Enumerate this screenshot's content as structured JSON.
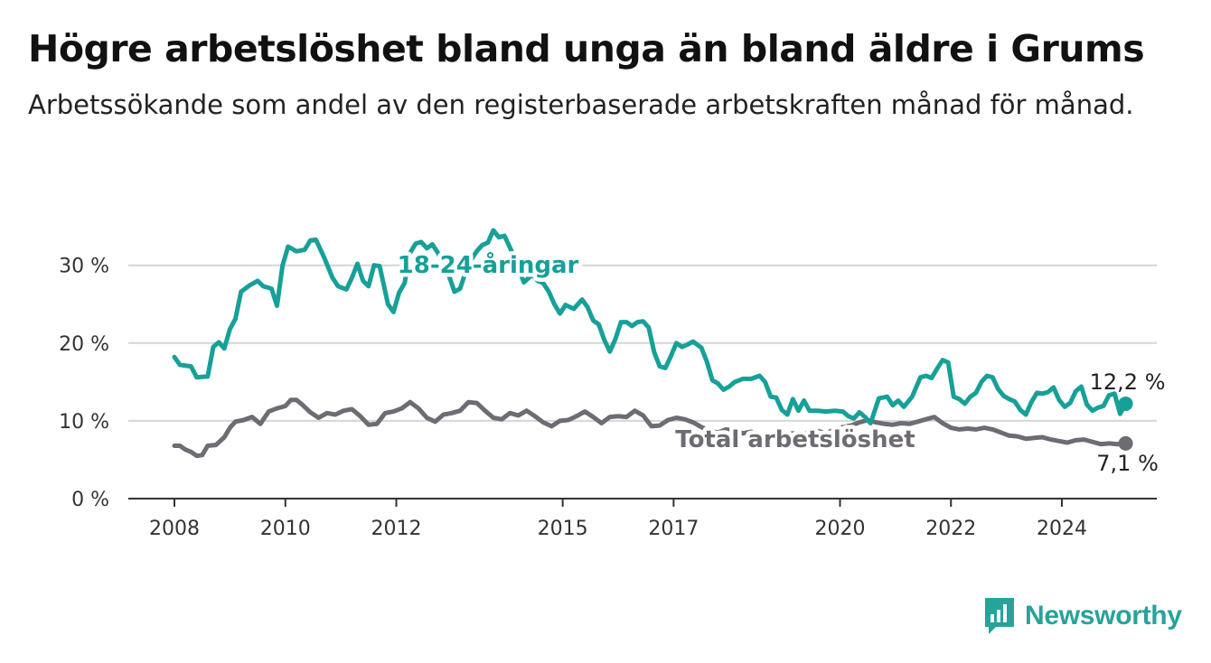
{
  "title": "Högre arbetslöshet bland unga än bland äldre i Grums",
  "subtitle": "Arbetssökande som andel av den registerbaserade arbetskraften månad för månad.",
  "brand": "Newsworthy",
  "colors": {
    "youth": "#17a098",
    "total": "#6e6b73",
    "grid": "#d6d6d6",
    "axis": "#333333"
  },
  "chart_data": {
    "type": "line",
    "x_ticks": [
      2008,
      2010,
      2012,
      2015,
      2017,
      2020,
      2022,
      2024
    ],
    "x_tick_labels": [
      "2008",
      "2010",
      "2012",
      "2015",
      "2017",
      "2020",
      "2022",
      "2024"
    ],
    "y_ticks": [
      0,
      10,
      20,
      30
    ],
    "y_tick_labels": [
      "0 %",
      "10 %",
      "20 %",
      "30 %"
    ],
    "ylim": [
      0,
      30
    ],
    "xlim": [
      2007.2,
      2025.4
    ],
    "grid": true,
    "series": [
      {
        "name": "18-24-åringar",
        "color": "#17a098",
        "end_label": "12,2 %",
        "points": [
          [
            2008.0,
            18.2
          ],
          [
            2008.1,
            17.2
          ],
          [
            2008.3,
            17.0
          ],
          [
            2008.4,
            15.6
          ],
          [
            2008.6,
            15.7
          ],
          [
            2008.7,
            19.5
          ],
          [
            2008.8,
            20.1
          ],
          [
            2008.9,
            19.3
          ],
          [
            2009.0,
            21.8
          ],
          [
            2009.1,
            23.1
          ],
          [
            2009.2,
            26.6
          ],
          [
            2009.35,
            27.4
          ],
          [
            2009.5,
            28.0
          ],
          [
            2009.6,
            27.3
          ],
          [
            2009.75,
            27.0
          ],
          [
            2009.85,
            24.8
          ],
          [
            2009.95,
            30.0
          ],
          [
            2010.05,
            32.4
          ],
          [
            2010.2,
            31.8
          ],
          [
            2010.35,
            32.0
          ],
          [
            2010.45,
            33.2
          ],
          [
            2010.55,
            33.3
          ],
          [
            2010.7,
            31.0
          ],
          [
            2010.85,
            28.4
          ],
          [
            2010.95,
            27.3
          ],
          [
            2011.1,
            26.9
          ],
          [
            2011.2,
            28.4
          ],
          [
            2011.3,
            30.2
          ],
          [
            2011.4,
            28.0
          ],
          [
            2011.5,
            27.3
          ],
          [
            2011.6,
            30.0
          ],
          [
            2011.7,
            29.9
          ],
          [
            2011.85,
            25.0
          ],
          [
            2011.95,
            24.0
          ],
          [
            2012.05,
            26.5
          ],
          [
            2012.15,
            27.7
          ],
          [
            2012.25,
            31.6
          ],
          [
            2012.35,
            32.8
          ],
          [
            2012.45,
            33.0
          ],
          [
            2012.55,
            32.2
          ],
          [
            2012.65,
            32.7
          ],
          [
            2012.75,
            31.6
          ],
          [
            2012.9,
            29.7
          ],
          [
            2013.05,
            26.6
          ],
          [
            2013.15,
            27.0
          ],
          [
            2013.3,
            30.2
          ],
          [
            2013.45,
            31.8
          ],
          [
            2013.55,
            32.6
          ],
          [
            2013.65,
            32.9
          ],
          [
            2013.75,
            34.5
          ],
          [
            2013.85,
            33.6
          ],
          [
            2013.95,
            33.8
          ],
          [
            2014.1,
            31.5
          ],
          [
            2014.2,
            29.7
          ],
          [
            2014.3,
            27.8
          ],
          [
            2014.45,
            28.8
          ],
          [
            2014.55,
            28.0
          ],
          [
            2014.65,
            27.7
          ],
          [
            2014.75,
            26.6
          ],
          [
            2014.85,
            25.0
          ],
          [
            2014.95,
            23.8
          ],
          [
            2015.05,
            24.9
          ],
          [
            2015.2,
            24.4
          ],
          [
            2015.35,
            25.6
          ],
          [
            2015.45,
            24.6
          ],
          [
            2015.55,
            22.9
          ],
          [
            2015.65,
            22.4
          ],
          [
            2015.75,
            20.4
          ],
          [
            2015.85,
            18.9
          ],
          [
            2015.95,
            20.5
          ],
          [
            2016.05,
            22.7
          ],
          [
            2016.15,
            22.7
          ],
          [
            2016.25,
            22.2
          ],
          [
            2016.35,
            22.7
          ],
          [
            2016.45,
            22.8
          ],
          [
            2016.55,
            22.0
          ],
          [
            2016.65,
            18.8
          ],
          [
            2016.75,
            17.0
          ],
          [
            2016.85,
            16.8
          ],
          [
            2016.95,
            18.3
          ],
          [
            2017.05,
            20.0
          ],
          [
            2017.15,
            19.5
          ],
          [
            2017.25,
            19.8
          ],
          [
            2017.35,
            20.2
          ],
          [
            2017.5,
            19.4
          ],
          [
            2017.6,
            17.6
          ],
          [
            2017.7,
            15.2
          ],
          [
            2017.8,
            14.8
          ],
          [
            2017.9,
            14.0
          ],
          [
            2018.0,
            14.4
          ],
          [
            2018.1,
            15.0
          ],
          [
            2018.25,
            15.4
          ],
          [
            2018.4,
            15.4
          ],
          [
            2018.55,
            15.8
          ],
          [
            2018.65,
            15.0
          ],
          [
            2018.75,
            13.1
          ],
          [
            2018.85,
            13.0
          ],
          [
            2018.95,
            11.4
          ],
          [
            2019.05,
            10.8
          ],
          [
            2019.15,
            12.8
          ],
          [
            2019.25,
            11.3
          ],
          [
            2019.35,
            12.6
          ],
          [
            2019.45,
            11.3
          ],
          [
            2019.6,
            11.3
          ],
          [
            2019.75,
            11.2
          ],
          [
            2019.9,
            11.3
          ],
          [
            2020.05,
            11.2
          ],
          [
            2020.15,
            10.6
          ],
          [
            2020.25,
            10.3
          ],
          [
            2020.35,
            11.1
          ],
          [
            2020.45,
            10.5
          ],
          [
            2020.55,
            9.7
          ],
          [
            2020.7,
            12.9
          ],
          [
            2020.85,
            13.1
          ],
          [
            2020.95,
            12.0
          ],
          [
            2021.05,
            12.6
          ],
          [
            2021.15,
            11.8
          ],
          [
            2021.3,
            13.1
          ],
          [
            2021.45,
            15.6
          ],
          [
            2021.55,
            15.8
          ],
          [
            2021.65,
            15.5
          ],
          [
            2021.75,
            16.7
          ],
          [
            2021.85,
            17.8
          ],
          [
            2021.95,
            17.5
          ],
          [
            2022.05,
            13.1
          ],
          [
            2022.15,
            12.8
          ],
          [
            2022.25,
            12.2
          ],
          [
            2022.35,
            13.1
          ],
          [
            2022.45,
            13.6
          ],
          [
            2022.55,
            15.0
          ],
          [
            2022.65,
            15.8
          ],
          [
            2022.75,
            15.6
          ],
          [
            2022.85,
            14.1
          ],
          [
            2022.95,
            13.2
          ],
          [
            2023.05,
            12.8
          ],
          [
            2023.15,
            12.5
          ],
          [
            2023.25,
            11.4
          ],
          [
            2023.35,
            10.8
          ],
          [
            2023.45,
            12.4
          ],
          [
            2023.55,
            13.6
          ],
          [
            2023.65,
            13.5
          ],
          [
            2023.75,
            13.7
          ],
          [
            2023.85,
            14.3
          ],
          [
            2023.95,
            12.7
          ],
          [
            2024.05,
            11.8
          ],
          [
            2024.15,
            12.3
          ],
          [
            2024.25,
            13.8
          ],
          [
            2024.35,
            14.4
          ],
          [
            2024.45,
            12.1
          ],
          [
            2024.55,
            11.3
          ],
          [
            2024.65,
            11.7
          ],
          [
            2024.75,
            11.9
          ],
          [
            2024.85,
            13.3
          ],
          [
            2024.95,
            13.5
          ],
          [
            2025.05,
            10.9
          ],
          [
            2025.15,
            12.2
          ]
        ]
      },
      {
        "name": "Total arbetslöshet",
        "color": "#6e6b73",
        "end_label": "7,1 %",
        "points": [
          [
            2008.0,
            6.8
          ],
          [
            2008.1,
            6.8
          ],
          [
            2008.2,
            6.3
          ],
          [
            2008.3,
            6.0
          ],
          [
            2008.4,
            5.5
          ],
          [
            2008.5,
            5.6
          ],
          [
            2008.6,
            6.8
          ],
          [
            2008.75,
            6.9
          ],
          [
            2008.9,
            7.9
          ],
          [
            2009.0,
            9.1
          ],
          [
            2009.1,
            9.9
          ],
          [
            2009.25,
            10.1
          ],
          [
            2009.4,
            10.5
          ],
          [
            2009.55,
            9.6
          ],
          [
            2009.7,
            11.2
          ],
          [
            2009.85,
            11.6
          ],
          [
            2010.0,
            11.9
          ],
          [
            2010.1,
            12.7
          ],
          [
            2010.2,
            12.7
          ],
          [
            2010.3,
            12.1
          ],
          [
            2010.45,
            11.1
          ],
          [
            2010.6,
            10.4
          ],
          [
            2010.75,
            11.0
          ],
          [
            2010.9,
            10.8
          ],
          [
            2011.05,
            11.3
          ],
          [
            2011.2,
            11.5
          ],
          [
            2011.35,
            10.6
          ],
          [
            2011.5,
            9.5
          ],
          [
            2011.65,
            9.6
          ],
          [
            2011.8,
            11.0
          ],
          [
            2011.95,
            11.2
          ],
          [
            2012.1,
            11.6
          ],
          [
            2012.25,
            12.4
          ],
          [
            2012.4,
            11.6
          ],
          [
            2012.55,
            10.4
          ],
          [
            2012.7,
            9.9
          ],
          [
            2012.85,
            10.8
          ],
          [
            2013.0,
            11.0
          ],
          [
            2013.15,
            11.3
          ],
          [
            2013.3,
            12.4
          ],
          [
            2013.45,
            12.3
          ],
          [
            2013.6,
            11.3
          ],
          [
            2013.75,
            10.4
          ],
          [
            2013.9,
            10.2
          ],
          [
            2014.05,
            11.0
          ],
          [
            2014.2,
            10.7
          ],
          [
            2014.35,
            11.3
          ],
          [
            2014.5,
            10.6
          ],
          [
            2014.65,
            9.8
          ],
          [
            2014.8,
            9.3
          ],
          [
            2014.95,
            10.0
          ],
          [
            2015.1,
            10.1
          ],
          [
            2015.25,
            10.6
          ],
          [
            2015.4,
            11.2
          ],
          [
            2015.55,
            10.5
          ],
          [
            2015.7,
            9.7
          ],
          [
            2015.85,
            10.5
          ],
          [
            2016.0,
            10.6
          ],
          [
            2016.15,
            10.5
          ],
          [
            2016.3,
            11.3
          ],
          [
            2016.45,
            10.7
          ],
          [
            2016.6,
            9.3
          ],
          [
            2016.75,
            9.4
          ],
          [
            2016.9,
            10.1
          ],
          [
            2017.05,
            10.4
          ],
          [
            2017.2,
            10.2
          ],
          [
            2017.35,
            9.8
          ],
          [
            2017.5,
            9.2
          ],
          [
            2017.65,
            8.7
          ],
          [
            2017.8,
            8.5
          ],
          [
            2017.95,
            8.9
          ],
          [
            2018.1,
            8.7
          ],
          [
            2018.25,
            8.4
          ],
          [
            2018.4,
            8.6
          ],
          [
            2018.55,
            8.2
          ],
          [
            2018.7,
            8.0
          ],
          [
            2018.85,
            7.8
          ],
          [
            2019.0,
            8.1
          ],
          [
            2019.15,
            8.4
          ],
          [
            2019.3,
            8.3
          ],
          [
            2019.45,
            8.5
          ],
          [
            2019.6,
            8.7
          ],
          [
            2019.75,
            8.4
          ],
          [
            2019.9,
            8.9
          ],
          [
            2020.05,
            9.2
          ],
          [
            2020.2,
            9.4
          ],
          [
            2020.35,
            9.8
          ],
          [
            2020.5,
            10.1
          ],
          [
            2020.65,
            9.8
          ],
          [
            2020.8,
            9.6
          ],
          [
            2020.95,
            9.5
          ],
          [
            2021.1,
            9.7
          ],
          [
            2021.25,
            9.6
          ],
          [
            2021.4,
            9.9
          ],
          [
            2021.55,
            10.2
          ],
          [
            2021.7,
            10.5
          ],
          [
            2021.85,
            9.7
          ],
          [
            2022.0,
            9.1
          ],
          [
            2022.15,
            8.9
          ],
          [
            2022.3,
            9.0
          ],
          [
            2022.45,
            8.9
          ],
          [
            2022.6,
            9.1
          ],
          [
            2022.75,
            8.9
          ],
          [
            2022.9,
            8.5
          ],
          [
            2023.05,
            8.1
          ],
          [
            2023.2,
            8.0
          ],
          [
            2023.35,
            7.7
          ],
          [
            2023.5,
            7.8
          ],
          [
            2023.65,
            7.9
          ],
          [
            2023.8,
            7.6
          ],
          [
            2023.95,
            7.4
          ],
          [
            2024.1,
            7.2
          ],
          [
            2024.25,
            7.5
          ],
          [
            2024.4,
            7.6
          ],
          [
            2024.55,
            7.3
          ],
          [
            2024.7,
            7.0
          ],
          [
            2024.85,
            7.1
          ],
          [
            2025.0,
            7.0
          ],
          [
            2025.15,
            7.1
          ]
        ]
      }
    ]
  }
}
